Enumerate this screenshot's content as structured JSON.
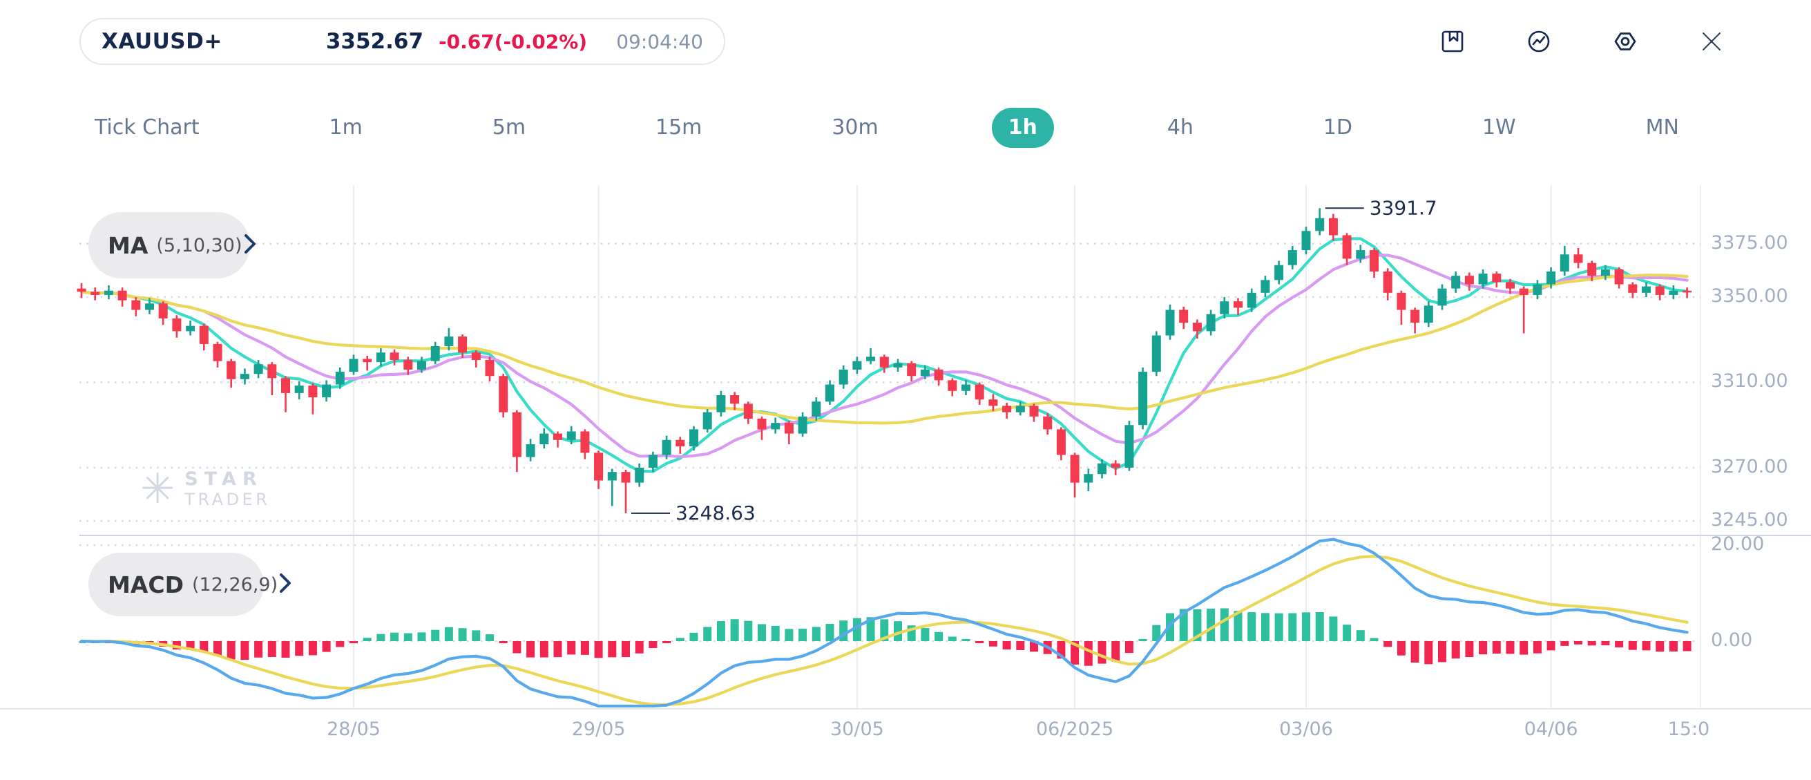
{
  "header": {
    "symbol": "XAUUSD+",
    "price": "3352.67",
    "change": "-0.67(-0.02%)",
    "time": "09:04:40",
    "icons": [
      {
        "name": "bookmark-icon"
      },
      {
        "name": "performance-icon"
      },
      {
        "name": "settings-icon"
      },
      {
        "name": "close-icon"
      }
    ]
  },
  "timeframes": {
    "active": "1h",
    "items": [
      {
        "label": "Tick Chart"
      },
      {
        "label": "1m"
      },
      {
        "label": "5m"
      },
      {
        "label": "15m"
      },
      {
        "label": "30m"
      },
      {
        "label": "1h"
      },
      {
        "label": "4h"
      },
      {
        "label": "1D"
      },
      {
        "label": "1W"
      },
      {
        "label": "MN"
      }
    ]
  },
  "indicators": {
    "ma": {
      "label": "MA",
      "params": "(5,10,30)"
    },
    "macd": {
      "label": "MACD",
      "params": "(12,26,9)"
    }
  },
  "watermark": {
    "line1": "STAR",
    "line2": "TRADER"
  },
  "chart_data": {
    "type": "candlestick",
    "symbol": "XAUUSD+",
    "timeframe": "1h",
    "grid": true,
    "y_axis": {
      "price_labels": [
        {
          "label": "3375.00",
          "value": 3375
        },
        {
          "label": "3350.00",
          "value": 3350
        },
        {
          "label": "3310.00",
          "value": 3310
        },
        {
          "label": "3270.00",
          "value": 3270
        },
        {
          "label": "3245.00",
          "value": 3245
        }
      ],
      "macd_labels": [
        {
          "label": "20.00",
          "value": 20
        },
        {
          "label": "0.00",
          "value": 0
        }
      ]
    },
    "x_axis": {
      "labels": [
        {
          "label": "28/05",
          "index": 20
        },
        {
          "label": "29/05",
          "index": 38
        },
        {
          "label": "30/05",
          "index": 57
        },
        {
          "label": "06/2025",
          "index": 73
        },
        {
          "label": "03/06",
          "index": 90
        },
        {
          "label": "04/06",
          "index": 108
        },
        {
          "label": "15:0",
          "index": 118,
          "edge": true
        }
      ],
      "gridline_indices": [
        20,
        38,
        57,
        73,
        90,
        108
      ]
    },
    "annotations": {
      "high": {
        "label": "3391.7",
        "index": 91,
        "price": 3391.7
      },
      "low": {
        "label": "3248.63",
        "index": 40,
        "price": 3248.63
      }
    },
    "ma": {
      "periods": [
        5,
        10,
        30
      ],
      "colors": [
        "#38dcc8",
        "#d89af2",
        "#ecd858"
      ]
    },
    "macd": {
      "fast": 12,
      "slow": 26,
      "signal": 9,
      "line_color": "#58a9eb",
      "signal_color": "#ecd858",
      "hist_up": "#2ebf9f",
      "hist_down": "#f22550"
    },
    "colors": {
      "up": "#16a293",
      "down": "#f43a4e"
    },
    "candles": [
      [
        3354.0,
        3356.5,
        3349.5,
        3352.5
      ],
      [
        3352.5,
        3354.5,
        3348.5,
        3351.0
      ],
      [
        3351.0,
        3355.5,
        3349.0,
        3353.0
      ],
      [
        3353.0,
        3354.5,
        3345.5,
        3348.5
      ],
      [
        3348.5,
        3350.0,
        3341.0,
        3344.0
      ],
      [
        3344.0,
        3349.5,
        3342.0,
        3347.0
      ],
      [
        3347.0,
        3348.0,
        3337.0,
        3340.0
      ],
      [
        3340.0,
        3341.5,
        3331.0,
        3334.0
      ],
      [
        3334.0,
        3339.0,
        3332.0,
        3336.5
      ],
      [
        3336.5,
        3337.5,
        3325.0,
        3328.0
      ],
      [
        3328.0,
        3329.0,
        3317.0,
        3320.0
      ],
      [
        3320.0,
        3321.0,
        3307.5,
        3311.5
      ],
      [
        3311.5,
        3316.5,
        3309.0,
        3314.0
      ],
      [
        3314.0,
        3320.5,
        3312.0,
        3318.5
      ],
      [
        3318.5,
        3319.5,
        3304.0,
        3312.0
      ],
      [
        3312.0,
        3313.0,
        3296.0,
        3305.0
      ],
      [
        3305.0,
        3310.5,
        3302.0,
        3308.5
      ],
      [
        3308.5,
        3309.5,
        3295.0,
        3303.0
      ],
      [
        3303.0,
        3311.0,
        3301.0,
        3309.0
      ],
      [
        3309.0,
        3317.0,
        3307.0,
        3315.0
      ],
      [
        3315.0,
        3323.0,
        3313.5,
        3321.0
      ],
      [
        3321.0,
        3322.5,
        3315.5,
        3319.5
      ],
      [
        3319.5,
        3326.0,
        3317.5,
        3324.0
      ],
      [
        3324.0,
        3325.5,
        3318.0,
        3320.5
      ],
      [
        3320.5,
        3322.0,
        3313.5,
        3316.0
      ],
      [
        3316.0,
        3322.0,
        3314.5,
        3320.0
      ],
      [
        3320.0,
        3329.0,
        3318.5,
        3327.0
      ],
      [
        3327.0,
        3335.5,
        3325.0,
        3331.5
      ],
      [
        3331.5,
        3332.5,
        3321.5,
        3324.0
      ],
      [
        3324.0,
        3325.0,
        3317.0,
        3320.5
      ],
      [
        3320.5,
        3322.0,
        3310.5,
        3313.0
      ],
      [
        3313.0,
        3314.0,
        3293.5,
        3296.0
      ],
      [
        3296.0,
        3297.0,
        3268.0,
        3275.0
      ],
      [
        3275.0,
        3283.5,
        3273.0,
        3281.0
      ],
      [
        3281.0,
        3288.5,
        3279.0,
        3286.0
      ],
      [
        3286.0,
        3287.0,
        3279.5,
        3283.0
      ],
      [
        3283.0,
        3289.5,
        3281.0,
        3287.0
      ],
      [
        3287.0,
        3288.0,
        3274.0,
        3277.0
      ],
      [
        3277.0,
        3278.0,
        3260.0,
        3264.0
      ],
      [
        3264.0,
        3269.5,
        3252.0,
        3268.0
      ],
      [
        3268.0,
        3269.0,
        3248.63,
        3263.0
      ],
      [
        3263.0,
        3272.0,
        3261.0,
        3270.0
      ],
      [
        3270.0,
        3277.5,
        3268.0,
        3276.0
      ],
      [
        3276.0,
        3285.0,
        3274.0,
        3283.0
      ],
      [
        3283.0,
        3284.5,
        3276.5,
        3280.0
      ],
      [
        3280.0,
        3289.5,
        3278.0,
        3288.0
      ],
      [
        3288.0,
        3297.5,
        3286.5,
        3296.0
      ],
      [
        3296.0,
        3306.0,
        3294.0,
        3304.0
      ],
      [
        3304.0,
        3305.5,
        3297.0,
        3300.0
      ],
      [
        3300.0,
        3301.0,
        3290.5,
        3293.0
      ],
      [
        3293.0,
        3294.0,
        3283.0,
        3288.0
      ],
      [
        3288.0,
        3293.5,
        3286.0,
        3291.0
      ],
      [
        3291.0,
        3292.0,
        3281.0,
        3286.0
      ],
      [
        3286.0,
        3296.0,
        3284.5,
        3294.0
      ],
      [
        3294.0,
        3303.0,
        3292.0,
        3301.0
      ],
      [
        3301.0,
        3311.0,
        3299.5,
        3309.0
      ],
      [
        3309.0,
        3318.0,
        3307.0,
        3316.0
      ],
      [
        3316.0,
        3322.0,
        3314.0,
        3320.0
      ],
      [
        3320.0,
        3326.0,
        3318.5,
        3322.0
      ],
      [
        3322.0,
        3323.0,
        3314.5,
        3317.0
      ],
      [
        3317.0,
        3321.0,
        3315.0,
        3319.0
      ],
      [
        3319.0,
        3320.0,
        3310.5,
        3313.0
      ],
      [
        3313.0,
        3318.0,
        3311.5,
        3316.0
      ],
      [
        3316.0,
        3317.0,
        3308.5,
        3311.0
      ],
      [
        3311.0,
        3312.0,
        3303.5,
        3306.0
      ],
      [
        3306.0,
        3311.0,
        3304.0,
        3309.0
      ],
      [
        3309.0,
        3310.0,
        3299.5,
        3302.0
      ],
      [
        3302.0,
        3304.5,
        3296.5,
        3299.0
      ],
      [
        3299.0,
        3300.5,
        3293.0,
        3296.0
      ],
      [
        3296.0,
        3301.0,
        3294.5,
        3299.0
      ],
      [
        3299.0,
        3300.0,
        3291.5,
        3294.0
      ],
      [
        3294.0,
        3295.5,
        3285.5,
        3288.0
      ],
      [
        3288.0,
        3289.0,
        3273.5,
        3276.0
      ],
      [
        3276.0,
        3277.0,
        3256.0,
        3263.0
      ],
      [
        3263.0,
        3269.5,
        3259.0,
        3267.0
      ],
      [
        3267.0,
        3274.0,
        3265.0,
        3272.0
      ],
      [
        3272.0,
        3273.5,
        3266.5,
        3270.0
      ],
      [
        3270.0,
        3292.0,
        3268.5,
        3290.0
      ],
      [
        3290.0,
        3317.0,
        3288.0,
        3315.0
      ],
      [
        3315.0,
        3334.0,
        3313.0,
        3332.0
      ],
      [
        3332.0,
        3346.5,
        3330.0,
        3344.0
      ],
      [
        3344.0,
        3345.5,
        3335.0,
        3338.0
      ],
      [
        3338.0,
        3339.5,
        3330.5,
        3334.0
      ],
      [
        3334.0,
        3344.0,
        3332.0,
        3342.0
      ],
      [
        3342.0,
        3350.0,
        3340.0,
        3348.0
      ],
      [
        3348.0,
        3349.5,
        3341.5,
        3345.0
      ],
      [
        3345.0,
        3354.0,
        3343.0,
        3352.0
      ],
      [
        3352.0,
        3360.0,
        3350.0,
        3358.0
      ],
      [
        3358.0,
        3367.0,
        3356.0,
        3365.0
      ],
      [
        3365.0,
        3374.0,
        3363.0,
        3372.0
      ],
      [
        3372.0,
        3383.0,
        3370.0,
        3381.0
      ],
      [
        3381.0,
        3391.7,
        3379.0,
        3387.0
      ],
      [
        3387.0,
        3389.0,
        3376.5,
        3379.0
      ],
      [
        3379.0,
        3380.0,
        3365.0,
        3368.0
      ],
      [
        3368.0,
        3374.5,
        3366.0,
        3372.0
      ],
      [
        3372.0,
        3373.0,
        3359.0,
        3362.0
      ],
      [
        3362.0,
        3363.5,
        3348.5,
        3352.0
      ],
      [
        3352.0,
        3353.0,
        3337.0,
        3344.0
      ],
      [
        3344.0,
        3345.0,
        3333.0,
        3338.0
      ],
      [
        3338.0,
        3348.0,
        3336.0,
        3346.0
      ],
      [
        3346.0,
        3356.0,
        3344.0,
        3354.0
      ],
      [
        3354.0,
        3362.0,
        3352.0,
        3360.0
      ],
      [
        3360.0,
        3361.5,
        3353.0,
        3356.0
      ],
      [
        3356.0,
        3363.0,
        3354.0,
        3361.0
      ],
      [
        3361.0,
        3362.0,
        3354.5,
        3357.0
      ],
      [
        3357.0,
        3358.5,
        3351.5,
        3354.0
      ],
      [
        3354.0,
        3355.0,
        3333.0,
        3351.0
      ],
      [
        3351.0,
        3358.0,
        3349.0,
        3356.0
      ],
      [
        3356.0,
        3364.0,
        3354.0,
        3362.0
      ],
      [
        3362.0,
        3374.0,
        3360.0,
        3370.0
      ],
      [
        3370.0,
        3373.0,
        3363.5,
        3366.0
      ],
      [
        3366.0,
        3367.0,
        3357.5,
        3360.0
      ],
      [
        3360.0,
        3365.0,
        3358.0,
        3363.0
      ],
      [
        3363.0,
        3364.0,
        3354.0,
        3356.0
      ],
      [
        3356.0,
        3357.0,
        3349.5,
        3352.0
      ],
      [
        3352.0,
        3357.0,
        3350.0,
        3355.0
      ],
      [
        3355.0,
        3356.0,
        3348.5,
        3351.0
      ],
      [
        3351.0,
        3355.5,
        3349.0,
        3353.0
      ],
      [
        3353.0,
        3354.5,
        3349.5,
        3352.67
      ]
    ]
  }
}
